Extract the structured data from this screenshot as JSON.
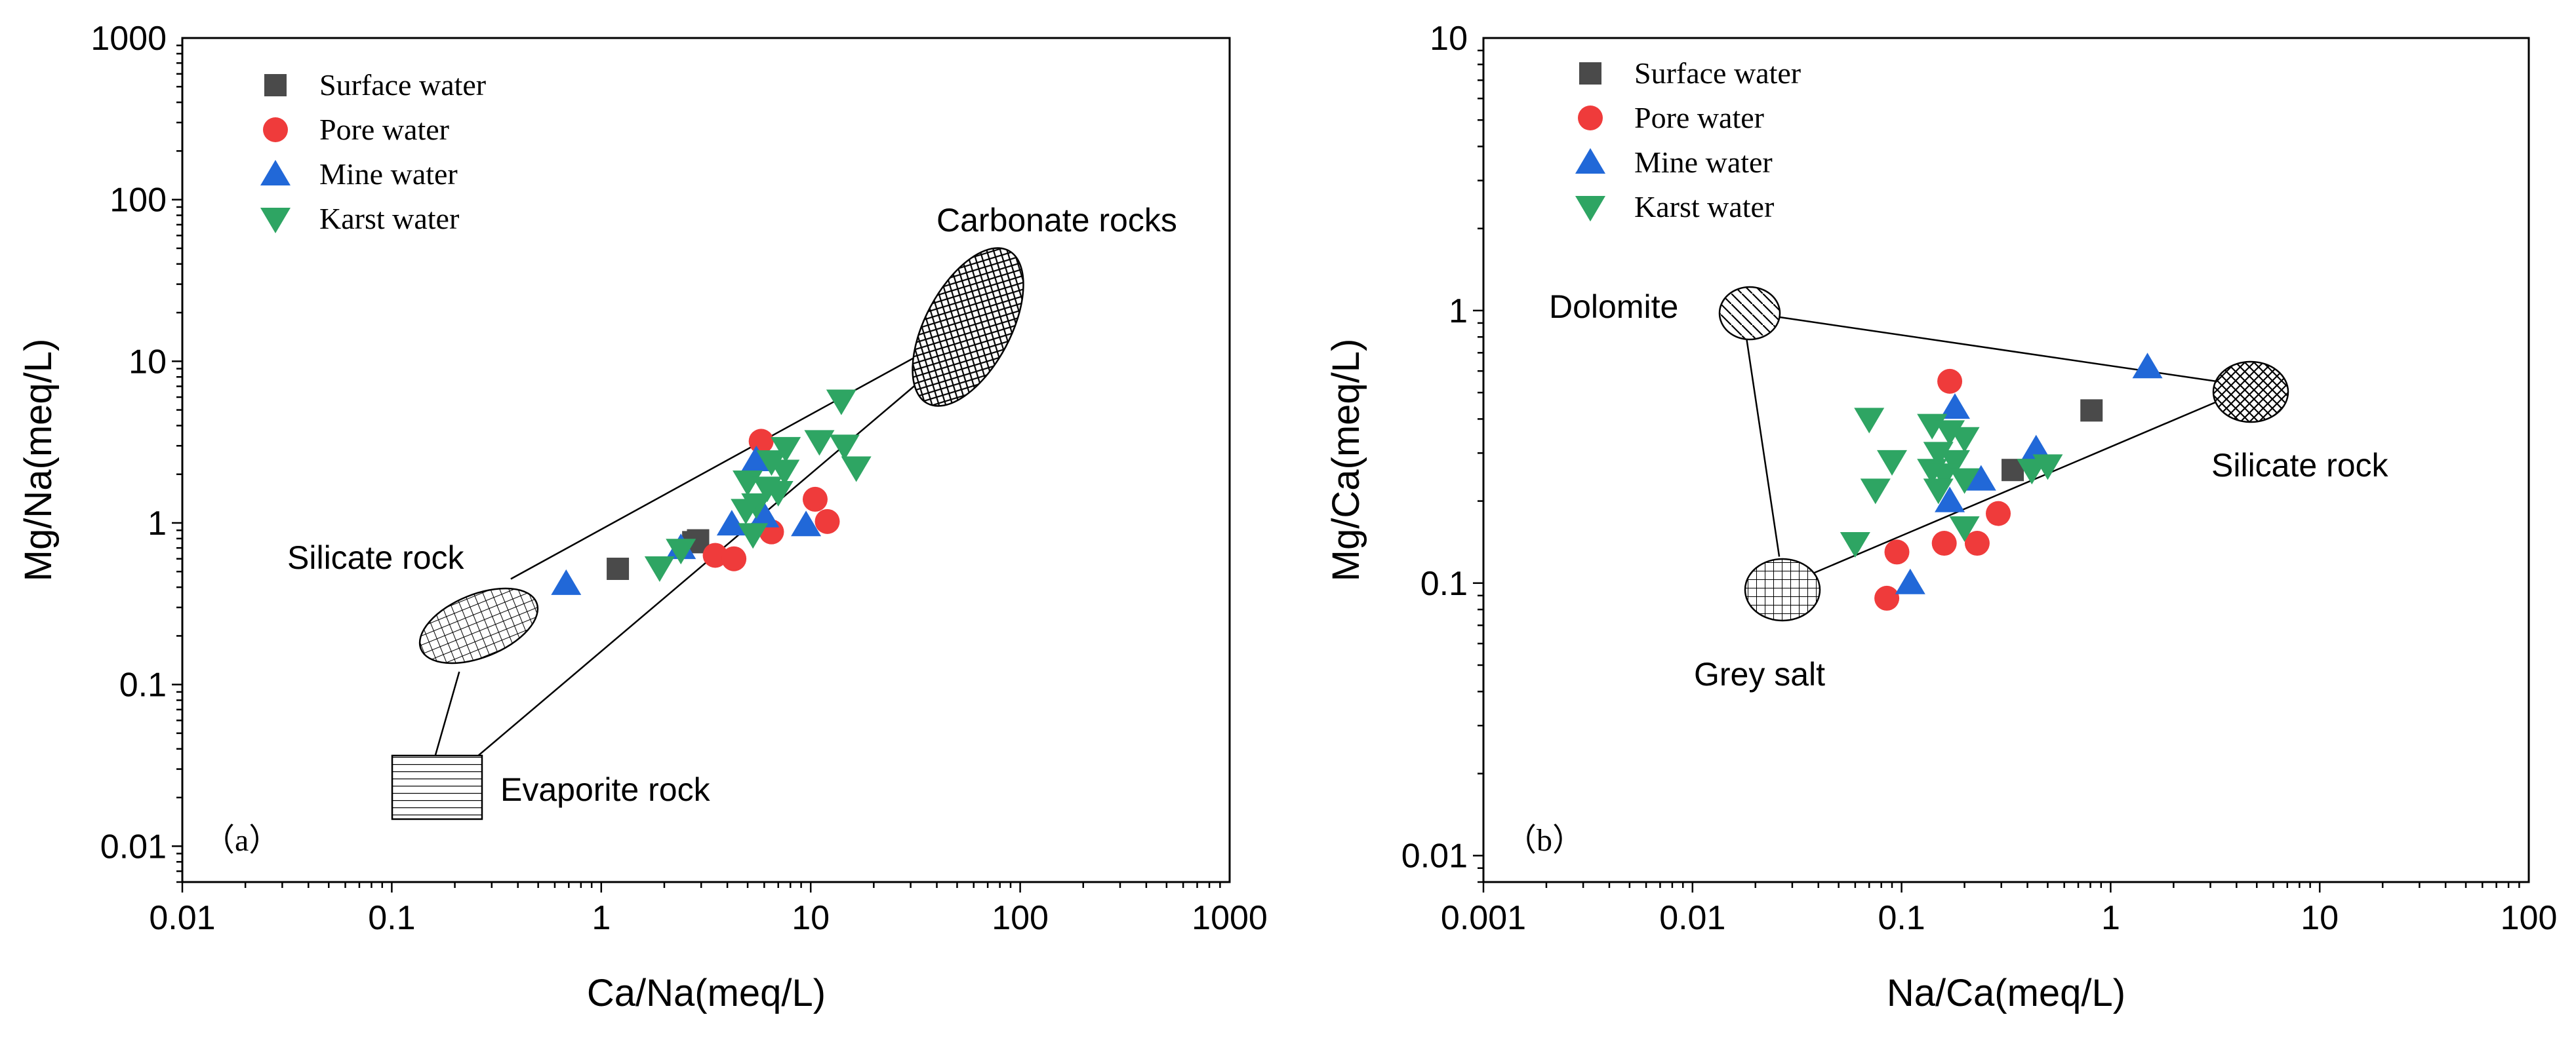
{
  "colors": {
    "surface": "#4a4a4a",
    "pore": "#ef3b3b",
    "mine": "#2168d8",
    "karst": "#2ea563",
    "axis": "#000000"
  },
  "chart_data": [
    {
      "type": "scatter",
      "panel_label": "（a）",
      "xlabel": "Ca/Na(meq/L)",
      "ylabel": "Mg/Na(meq/L)",
      "xscale": "log",
      "yscale": "log",
      "xlim": [
        0.01,
        1000
      ],
      "ylim": [
        0.006,
        1000
      ],
      "x_ticks": [
        {
          "v": 0.01,
          "label": "0.01"
        },
        {
          "v": 0.1,
          "label": "0.1"
        },
        {
          "v": 1,
          "label": "1"
        },
        {
          "v": 10,
          "label": "10"
        },
        {
          "v": 100,
          "label": "100"
        },
        {
          "v": 1000,
          "label": "1000"
        }
      ],
      "y_ticks": [
        {
          "v": 0.01,
          "label": "0.01"
        },
        {
          "v": 0.1,
          "label": "0.1"
        },
        {
          "v": 1,
          "label": "1"
        },
        {
          "v": 10,
          "label": "10"
        },
        {
          "v": 100,
          "label": "100"
        },
        {
          "v": 1000,
          "label": "1000"
        }
      ],
      "legend_position": "top-left",
      "series": [
        {
          "name": "Surface water",
          "marker": "square",
          "color": "#4a4a4a",
          "points": [
            [
              1.2,
              0.52
            ],
            [
              2.9,
              0.78
            ],
            [
              2.75,
              0.76
            ]
          ]
        },
        {
          "name": "Pore water",
          "marker": "circle",
          "color": "#ef3b3b",
          "points": [
            [
              5.8,
              3.2
            ],
            [
              10.5,
              1.4
            ],
            [
              12.0,
              1.02
            ],
            [
              6.5,
              0.88
            ],
            [
              3.5,
              0.63
            ],
            [
              4.3,
              0.6
            ]
          ]
        },
        {
          "name": "Mine water",
          "marker": "triangle-up",
          "color": "#2168d8",
          "points": [
            [
              0.68,
              0.42
            ],
            [
              2.4,
              0.7
            ],
            [
              4.2,
              0.98
            ],
            [
              6.0,
              1.1
            ],
            [
              5.5,
              2.45
            ],
            [
              9.5,
              0.97
            ]
          ]
        },
        {
          "name": "Karst water",
          "marker": "triangle-down",
          "color": "#2ea563",
          "points": [
            [
              14.0,
              5.7
            ],
            [
              11.0,
              3.2
            ],
            [
              14.5,
              3.0
            ],
            [
              7.6,
              2.9
            ],
            [
              6.5,
              2.4
            ],
            [
              16.5,
              2.2
            ],
            [
              7.5,
              2.1
            ],
            [
              5.0,
              1.8
            ],
            [
              6.2,
              1.65
            ],
            [
              5.5,
              1.3
            ],
            [
              7.0,
              1.55
            ],
            [
              5.3,
              0.85
            ],
            [
              2.4,
              0.68
            ],
            [
              1.9,
              0.53
            ],
            [
              4.9,
              1.2
            ]
          ]
        }
      ],
      "regions": [
        {
          "name": "Carbonate rocks",
          "pattern": "crosshatch",
          "center": [
            60,
            23
          ]
        },
        {
          "name": "Silicate rock",
          "pattern": "grid",
          "center": [
            0.3,
            0.3
          ]
        },
        {
          "name": "Evaporite rock",
          "pattern": "horizontal-lines",
          "center": [
            0.17,
            0.03
          ]
        }
      ],
      "mixing_lines": [
        {
          "from": [
            0.21,
            0.12
          ],
          "to": [
            0.16,
            0.035
          ]
        },
        {
          "from": [
            0.37,
            0.45
          ],
          "to": [
            42,
            13
          ]
        },
        {
          "from": [
            0.25,
            0.035
          ],
          "to": [
            45,
            10.5
          ]
        }
      ]
    },
    {
      "type": "scatter",
      "panel_label": "（b）",
      "xlabel": "Na/Ca(meq/L)",
      "ylabel": "Mg/Ca(meq/L)",
      "xscale": "log",
      "yscale": "log",
      "xlim": [
        0.001,
        100
      ],
      "ylim": [
        0.008,
        10
      ],
      "x_ticks": [
        {
          "v": 0.001,
          "label": "0.001"
        },
        {
          "v": 0.01,
          "label": "0.01"
        },
        {
          "v": 0.1,
          "label": "0.1"
        },
        {
          "v": 1,
          "label": "1"
        },
        {
          "v": 10,
          "label": "10"
        },
        {
          "v": 100,
          "label": "100"
        }
      ],
      "y_ticks": [
        {
          "v": 0.01,
          "label": "0.01"
        },
        {
          "v": 0.1,
          "label": "0.1"
        },
        {
          "v": 1,
          "label": "1"
        },
        {
          "v": 10,
          "label": "10"
        }
      ],
      "legend_position": "top-left",
      "series": [
        {
          "name": "Surface water",
          "marker": "square",
          "color": "#4a4a4a",
          "points": [
            [
              0.81,
              0.43
            ],
            [
              0.34,
              0.26
            ]
          ]
        },
        {
          "name": "Pore water",
          "marker": "circle",
          "color": "#ef3b3b",
          "points": [
            [
              0.17,
              0.55
            ],
            [
              0.29,
              0.18
            ],
            [
              0.16,
              0.14
            ],
            [
              0.23,
              0.14
            ],
            [
              0.095,
              0.13
            ],
            [
              0.085,
              0.088
            ]
          ]
        },
        {
          "name": "Mine water",
          "marker": "triangle-up",
          "color": "#2168d8",
          "points": [
            [
              1.5,
              0.62
            ],
            [
              0.18,
              0.44
            ],
            [
              0.44,
              0.31
            ],
            [
              0.24,
              0.24
            ],
            [
              0.17,
              0.2
            ],
            [
              0.11,
              0.1
            ]
          ]
        },
        {
          "name": "Karst water",
          "marker": "triangle-down",
          "color": "#2ea563",
          "points": [
            [
              0.07,
              0.4
            ],
            [
              0.14,
              0.38
            ],
            [
              0.17,
              0.36
            ],
            [
              0.2,
              0.34
            ],
            [
              0.09,
              0.28
            ],
            [
              0.15,
              0.3
            ],
            [
              0.18,
              0.28
            ],
            [
              0.14,
              0.26
            ],
            [
              0.16,
              0.25
            ],
            [
              0.2,
              0.24
            ],
            [
              0.075,
              0.22
            ],
            [
              0.15,
              0.22
            ],
            [
              0.42,
              0.26
            ],
            [
              0.5,
              0.27
            ],
            [
              0.2,
              0.16
            ],
            [
              0.06,
              0.14
            ]
          ]
        }
      ],
      "regions": [
        {
          "name": "Dolomite",
          "pattern": "diagonal-lines",
          "center": [
            0.02,
            1.0
          ]
        },
        {
          "name": "Silicate rock",
          "pattern": "crosshatch",
          "center": [
            4.8,
            0.52
          ]
        },
        {
          "name": "Grey salt",
          "pattern": "grid",
          "center": [
            0.027,
            0.1
          ]
        }
      ],
      "mixing_lines": [
        {
          "from": [
            0.025,
            0.95
          ],
          "to": [
            3.2,
            0.55
          ]
        },
        {
          "from": [
            0.018,
            0.82
          ],
          "to": [
            0.026,
            0.125
          ]
        },
        {
          "from": [
            0.034,
            0.105
          ],
          "to": [
            3.6,
            0.48
          ]
        }
      ]
    }
  ]
}
